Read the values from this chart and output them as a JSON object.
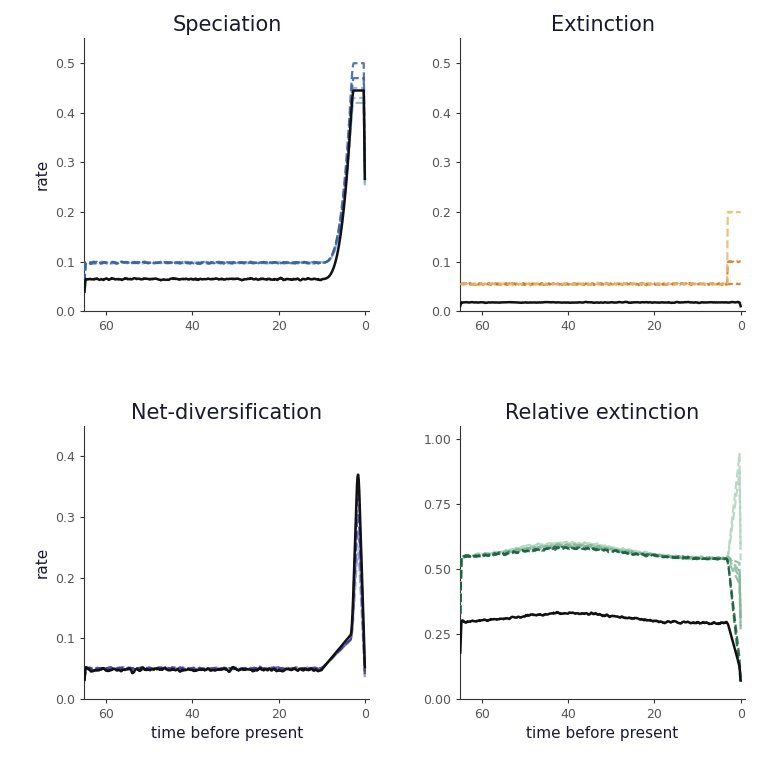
{
  "title_speciation": "Speciation",
  "title_extinction": "Extinction",
  "title_netdiv": "Net-diversification",
  "title_relext": "Relative extinction",
  "xlabel": "time before present",
  "ylabel": "rate",
  "background": "#ffffff",
  "title_fontsize": 15,
  "label_fontsize": 11,
  "tick_fontsize": 9,
  "title_color": "#1a1a2e",
  "tick_color": "#555555",
  "axis_color": "#333333",
  "black": "#111111",
  "col_spec_dark": "#3a5fa0",
  "col_spec_light": "#8ab0d8",
  "col_ext_dark": "#c87820",
  "col_ext_light": "#e8b870",
  "col_net_dark": "#4040a0",
  "col_net_light": "#9090c8",
  "col_rel_dark": "#1a6040",
  "col_rel_light": "#80b898",
  "col_rel_vlight": "#b0d4c0",
  "panels": {
    "spec": {
      "ylim": [
        0,
        0.55
      ],
      "yticks": [
        0.0,
        0.1,
        0.2,
        0.3,
        0.4,
        0.5
      ],
      "yticklabels": [
        "0.0",
        "0.1",
        "0.2",
        "0.3",
        "0.4",
        "0.5"
      ]
    },
    "ext": {
      "ylim": [
        0,
        0.55
      ],
      "yticks": [
        0.0,
        0.1,
        0.2,
        0.3,
        0.4,
        0.5
      ],
      "yticklabels": [
        "0.0",
        "0.1",
        "0.2",
        "0.3",
        "0.4",
        "0.5"
      ]
    },
    "net": {
      "ylim": [
        0,
        0.45
      ],
      "yticks": [
        0.0,
        0.1,
        0.2,
        0.3,
        0.4
      ],
      "yticklabels": [
        "0.0",
        "0.1",
        "0.2",
        "0.3",
        "0.4"
      ]
    },
    "rel": {
      "ylim": [
        0,
        1.05
      ],
      "yticks": [
        0.0,
        0.25,
        0.5,
        0.75,
        1.0
      ],
      "yticklabels": [
        "0.00",
        "0.25",
        "0.50",
        "0.75",
        "1.00"
      ]
    }
  }
}
